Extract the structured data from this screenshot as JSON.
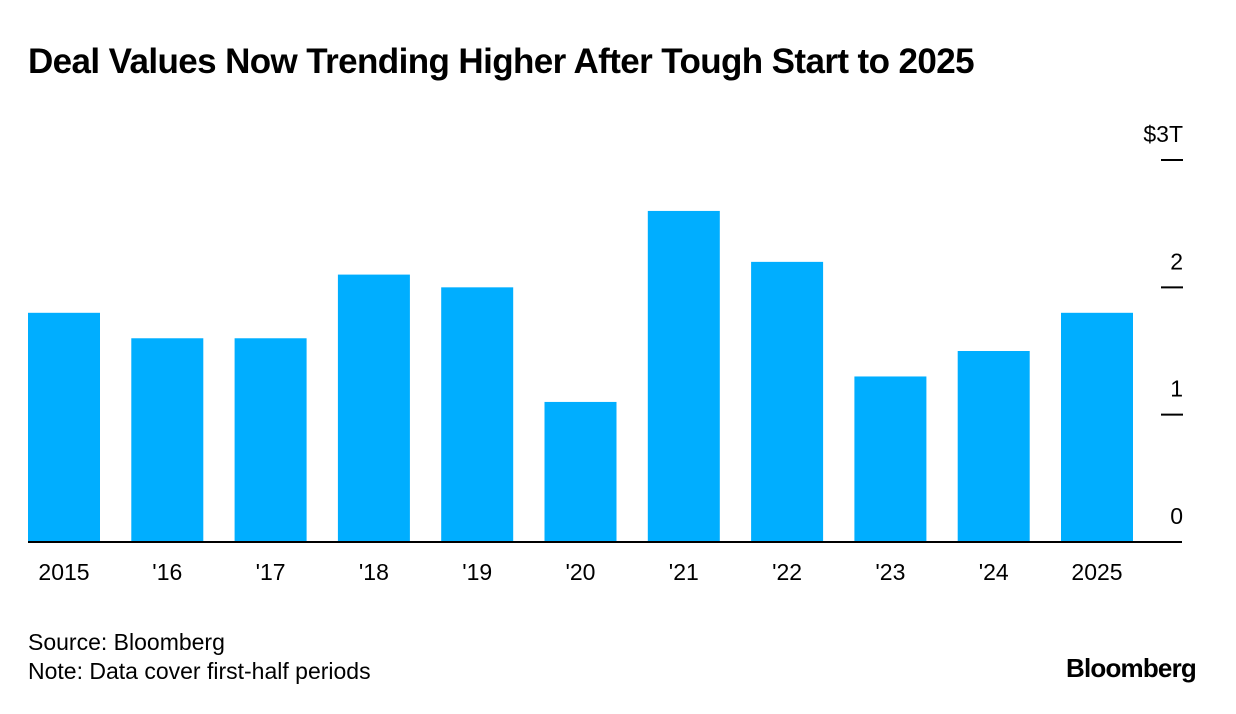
{
  "chart_data": {
    "type": "bar",
    "title": "Deal Values Now Trending Higher After Tough Start to 2025",
    "categories": [
      "2015",
      "'16",
      "'17",
      "'18",
      "'19",
      "'20",
      "'21",
      "'22",
      "'23",
      "'24",
      "2025"
    ],
    "values": [
      1.8,
      1.6,
      1.6,
      2.1,
      2.0,
      1.1,
      2.6,
      2.2,
      1.3,
      1.5,
      1.8
    ],
    "ylim": [
      0,
      3
    ],
    "yticks": [
      {
        "value": 3,
        "label": "$3T"
      },
      {
        "value": 2,
        "label": "2"
      },
      {
        "value": 1,
        "label": "1"
      },
      {
        "value": 0,
        "label": "0"
      }
    ],
    "ylabel": "",
    "xlabel": "",
    "y_axis_position": "right",
    "grid": false,
    "legend": "none",
    "bar_color": "#00aeff",
    "axis_color": "#000000"
  },
  "footer": {
    "source": "Source: Bloomberg",
    "note": "Note: Data cover first-half periods",
    "brand": "Bloomberg"
  }
}
